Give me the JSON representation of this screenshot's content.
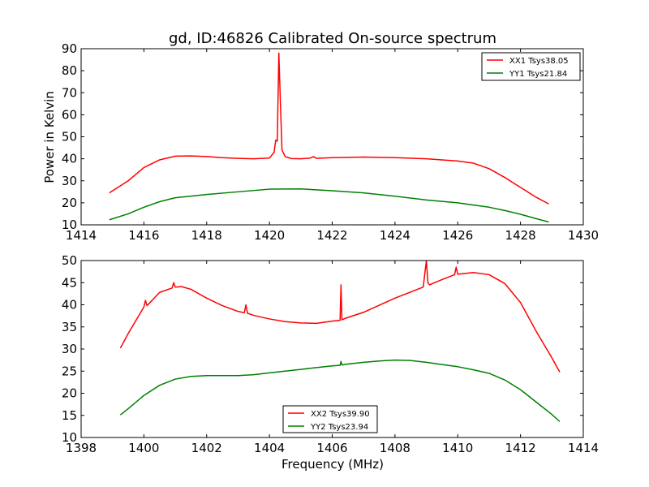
{
  "chart_data": [
    {
      "type": "line",
      "title": "gd, ID:46826 Calibrated On-source spectrum",
      "xlabel": "",
      "ylabel": "Power in Kelvin",
      "xlim": [
        1414,
        1430
      ],
      "ylim": [
        10,
        90
      ],
      "xticks": [
        "1414",
        "1416",
        "1418",
        "1420",
        "1422",
        "1424",
        "1426",
        "1428",
        "1430"
      ],
      "yticks": [
        "10",
        "20",
        "30",
        "40",
        "50",
        "60",
        "70",
        "80",
        "90"
      ],
      "legend": "top-right",
      "series": [
        {
          "name": "XX1 Tsys38.05",
          "color": "#ff0000",
          "x": [
            1414.9,
            1415.5,
            1416.0,
            1416.5,
            1417.0,
            1417.5,
            1418.0,
            1418.5,
            1419.0,
            1419.5,
            1420.0,
            1420.15,
            1420.2,
            1420.25,
            1420.3,
            1420.35,
            1420.4,
            1420.5,
            1420.7,
            1421.0,
            1421.3,
            1421.4,
            1421.5,
            1422.0,
            1423.0,
            1424.0,
            1425.0,
            1426.0,
            1426.5,
            1427.0,
            1427.5,
            1428.0,
            1428.5,
            1428.9
          ],
          "values": [
            24.5,
            30,
            36,
            39.5,
            41.2,
            41.3,
            41.0,
            40.5,
            40.2,
            40.0,
            40.3,
            43,
            48.5,
            48,
            88,
            65,
            44,
            41,
            40.1,
            40.0,
            40.3,
            41,
            40.2,
            40.5,
            40.8,
            40.5,
            40.0,
            39.0,
            38.0,
            35.5,
            31.5,
            27.0,
            22.5,
            19.5
          ]
        },
        {
          "name": "YY1 Tsys21.84",
          "color": "#008000",
          "x": [
            1414.9,
            1415.5,
            1416.0,
            1416.5,
            1417.0,
            1418.0,
            1419.0,
            1420.0,
            1421.0,
            1422.0,
            1423.0,
            1424.0,
            1425.0,
            1426.0,
            1426.5,
            1427.0,
            1427.5,
            1428.0,
            1428.5,
            1428.9
          ],
          "values": [
            12.3,
            15.0,
            18.0,
            20.5,
            22.3,
            23.8,
            25.0,
            26.2,
            26.3,
            25.5,
            24.5,
            23.0,
            21.3,
            20.0,
            19.0,
            18.0,
            16.5,
            14.8,
            12.8,
            11.3
          ]
        }
      ]
    },
    {
      "type": "line",
      "title": "",
      "xlabel": "Frequency (MHz)",
      "ylabel": "",
      "xlim": [
        1398,
        1414
      ],
      "ylim": [
        10,
        50
      ],
      "xticks": [
        "1398",
        "1400",
        "1402",
        "1404",
        "1406",
        "1408",
        "1410",
        "1412",
        "1414"
      ],
      "yticks": [
        "10",
        "15",
        "20",
        "25",
        "30",
        "35",
        "40",
        "45",
        "50"
      ],
      "legend": "bottom-center",
      "series": [
        {
          "name": "XX2 Tsys39.90",
          "color": "#ff0000",
          "x": [
            1399.25,
            1399.5,
            1400.0,
            1400.05,
            1400.1,
            1400.5,
            1400.9,
            1400.95,
            1401.0,
            1401.2,
            1401.5,
            1402.0,
            1402.5,
            1403.0,
            1403.2,
            1403.25,
            1403.3,
            1403.5,
            1404.0,
            1404.5,
            1405.0,
            1405.5,
            1406.0,
            1406.25,
            1406.28,
            1406.31,
            1406.4,
            1407.0,
            1408.0,
            1408.9,
            1409.0,
            1409.05,
            1409.1,
            1409.5,
            1409.9,
            1409.95,
            1410.0,
            1410.5,
            1411.0,
            1411.5,
            1412.0,
            1412.5,
            1413.0,
            1413.25
          ],
          "values": [
            30.2,
            33.5,
            39.5,
            41,
            39.8,
            42.8,
            43.8,
            45,
            44.0,
            44.1,
            43.5,
            41.5,
            39.8,
            38.5,
            38.2,
            40,
            38.1,
            37.6,
            36.8,
            36.2,
            35.9,
            35.8,
            36.3,
            36.5,
            44.5,
            36.6,
            36.9,
            38.3,
            41.5,
            44.0,
            50,
            45,
            44.5,
            45.7,
            46.8,
            48.5,
            46.9,
            47.3,
            46.8,
            44.8,
            40.5,
            34.0,
            28.0,
            24.8
          ]
        },
        {
          "name": "YY2 Tsys23.94",
          "color": "#008000",
          "x": [
            1399.25,
            1399.5,
            1400.0,
            1400.5,
            1401.0,
            1401.5,
            1402.0,
            1402.5,
            1403.0,
            1403.5,
            1404.0,
            1404.5,
            1405.0,
            1405.5,
            1406.0,
            1406.25,
            1406.28,
            1406.31,
            1406.5,
            1407.0,
            1407.5,
            1408.0,
            1408.5,
            1409.0,
            1409.5,
            1410.0,
            1410.5,
            1411.0,
            1411.5,
            1412.0,
            1412.5,
            1413.0,
            1413.25
          ],
          "values": [
            15.1,
            16.5,
            19.5,
            21.8,
            23.2,
            23.8,
            24.0,
            24.0,
            24.0,
            24.2,
            24.6,
            25.0,
            25.4,
            25.8,
            26.2,
            26.3,
            27.2,
            26.4,
            26.6,
            27.0,
            27.3,
            27.5,
            27.4,
            27.0,
            26.5,
            26.0,
            25.3,
            24.5,
            23.0,
            20.8,
            18.0,
            15.2,
            13.6
          ]
        }
      ]
    }
  ]
}
